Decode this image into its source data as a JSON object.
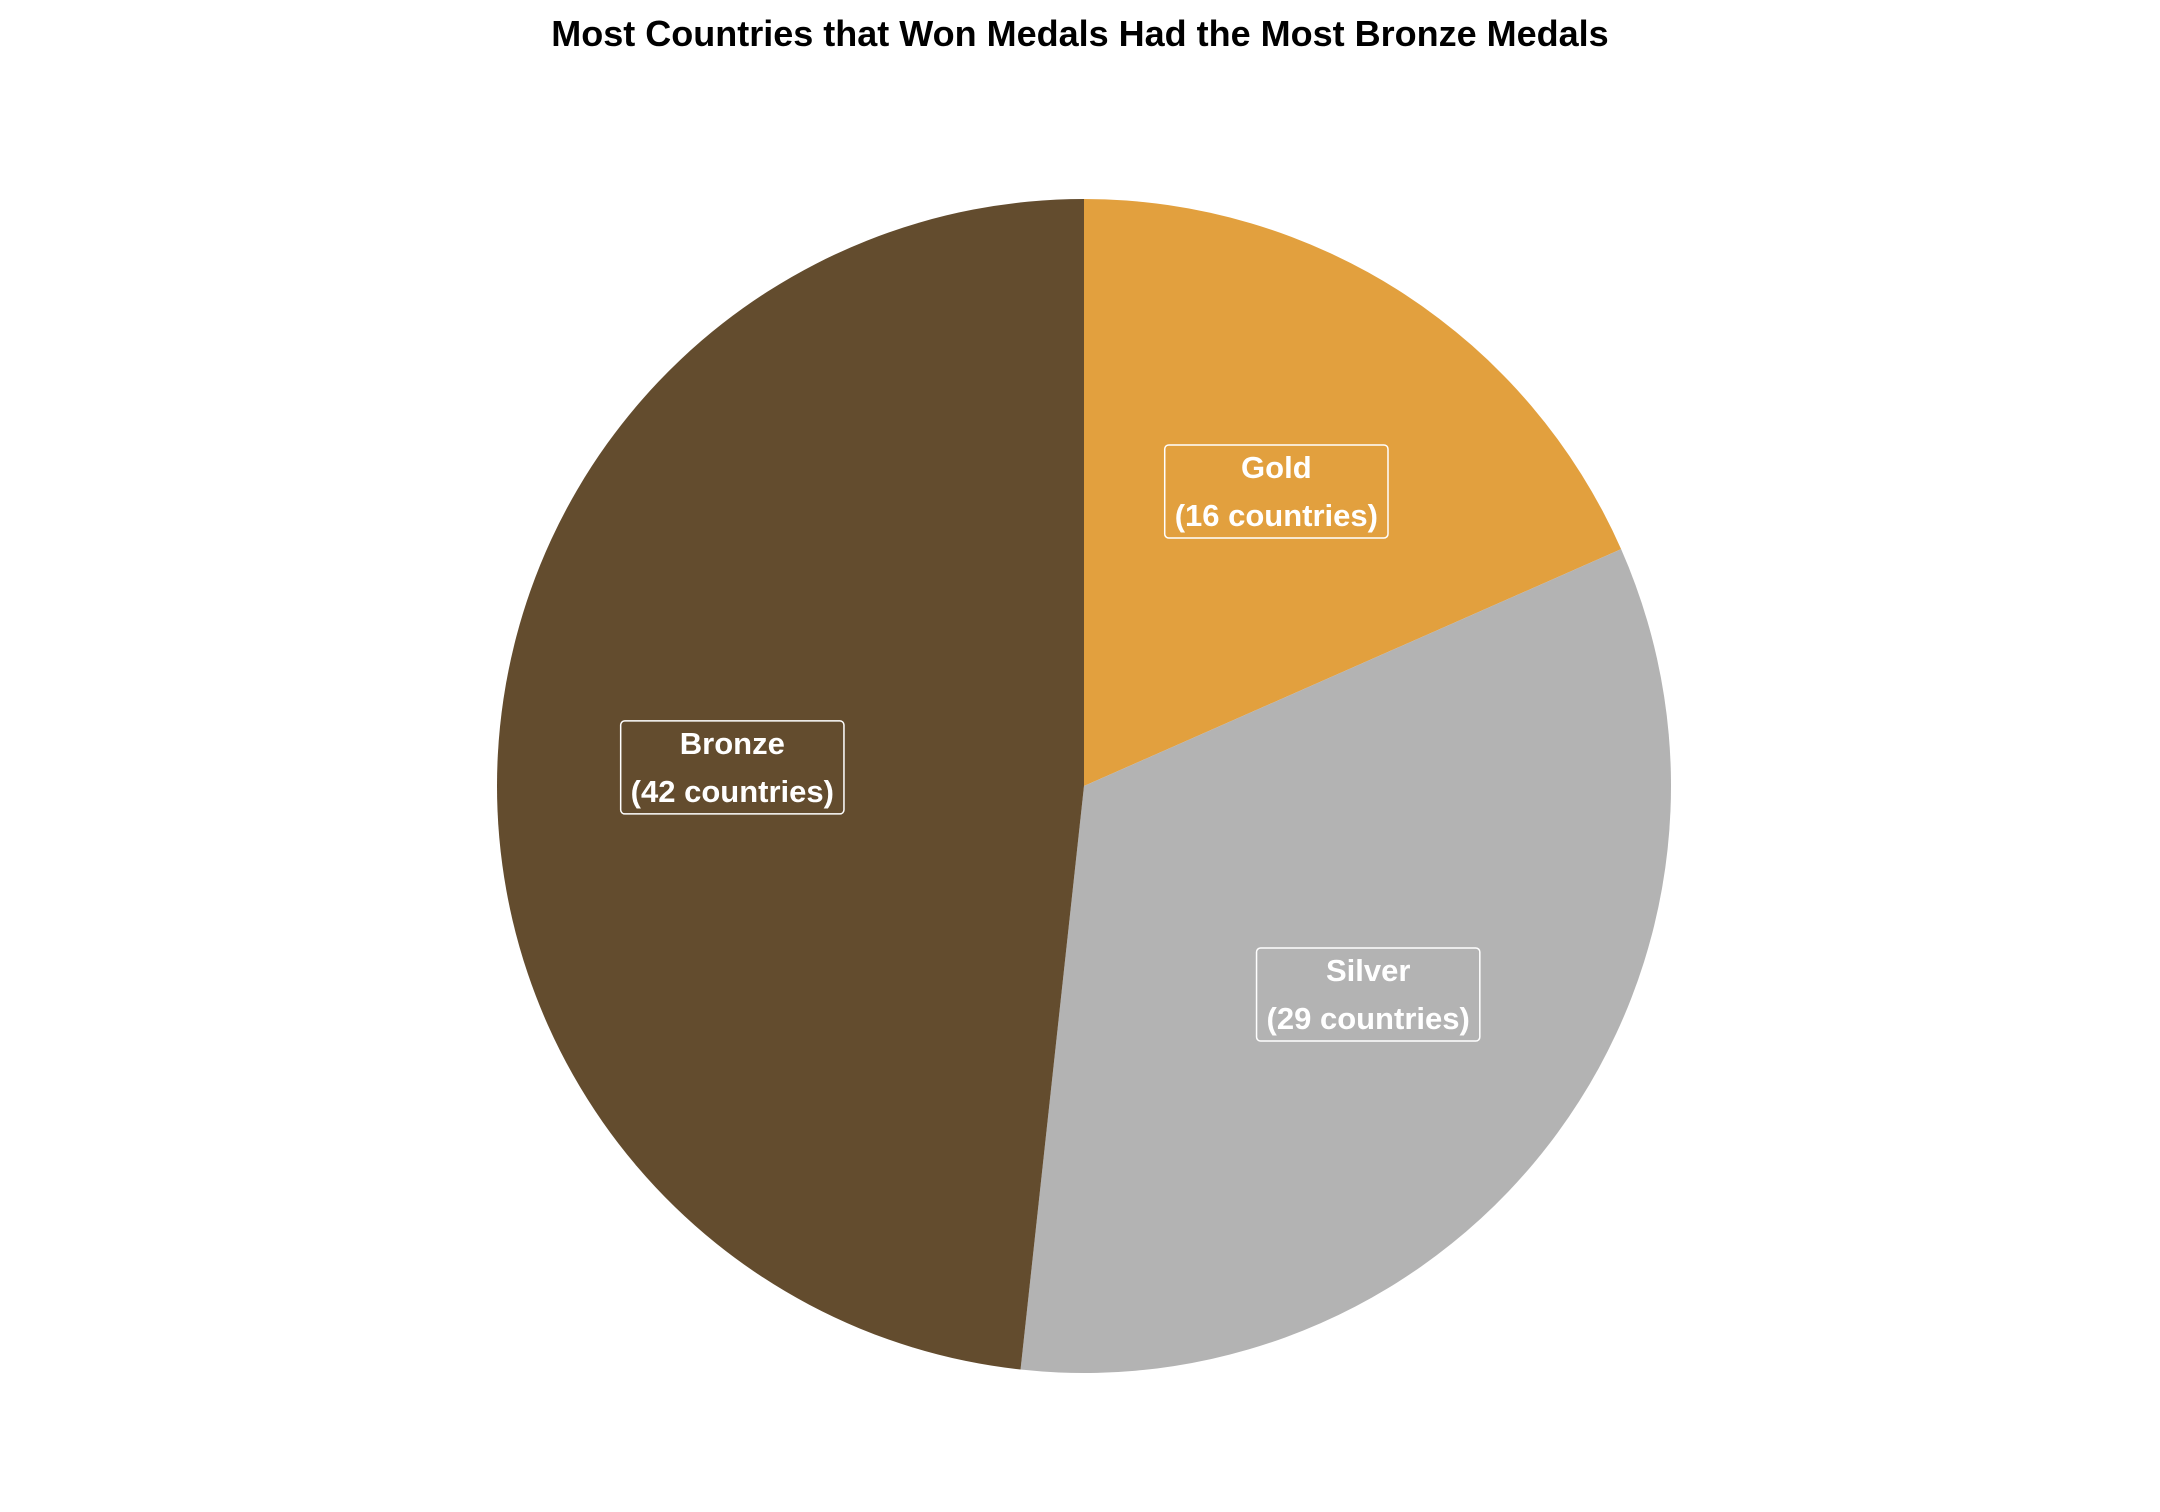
{
  "chart_data": {
    "type": "pie",
    "title": "Most Countries that Won Medals Had the Most Bronze Medals",
    "slices": [
      {
        "name": "Gold",
        "value": 16,
        "label_line1": "Gold",
        "label_line2": "(16 countries)",
        "color": "#E2A03E"
      },
      {
        "name": "Silver",
        "value": 29,
        "label_line1": "Silver",
        "label_line2": "(29 countries)",
        "color": "#B3B3B3"
      },
      {
        "name": "Bronze",
        "value": 42,
        "label_line1": "Bronze",
        "label_line2": "(42 countries)",
        "color": "#634C2E"
      }
    ],
    "start_angle": "12 o'clock",
    "direction": "clockwise",
    "legend": "none"
  }
}
